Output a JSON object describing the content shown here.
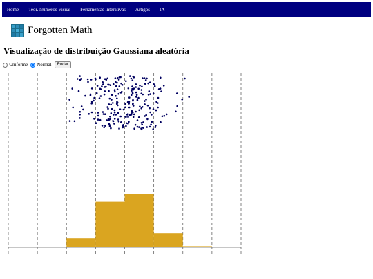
{
  "nav": {
    "items": [
      {
        "label": "Home"
      },
      {
        "label": "Teor. Números Visual"
      },
      {
        "label": "Ferramentas Interativas"
      },
      {
        "label": "Artigos"
      },
      {
        "label": "IA"
      }
    ]
  },
  "brand": {
    "name": "Forgotten Math",
    "logo_icon": "grid-cube-icon"
  },
  "page": {
    "title": "Visualização de distribuição Gaussiana aleatória"
  },
  "controls": {
    "options": [
      {
        "label": "Uniforme",
        "checked": false
      },
      {
        "label": "Normal",
        "checked": true
      }
    ],
    "run_label": "Rodar"
  },
  "colors": {
    "nav_bg": "#000080",
    "point": "#000060",
    "histogram": "#DAA520",
    "gridline": "#666666"
  },
  "chart_data": {
    "type": "histogram",
    "distribution": "normal",
    "bins": 8,
    "x_range": [
      0,
      1
    ],
    "bin_heights": [
      0,
      0,
      0.16,
      0.83,
      0.97,
      0.26,
      0.02,
      0
    ],
    "gridlines": 9,
    "gridline_style": "dashed"
  }
}
